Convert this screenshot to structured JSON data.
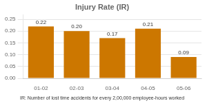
{
  "chart_data": {
    "type": "bar",
    "title": "Injury Rate (IR)",
    "categories": [
      "01-02",
      "02-03",
      "03-04",
      "04-05",
      "05-06"
    ],
    "values": [
      0.22,
      0.2,
      0.17,
      0.21,
      0.09
    ],
    "value_labels": [
      "0.22",
      "0.20",
      "0.17",
      "0.21",
      "0.09"
    ],
    "data_labels": true,
    "color": "#CC7700",
    "ylim": [
      0,
      0.27
    ],
    "yticks": [
      {
        "value": 0,
        "label": "0.00"
      },
      0.05,
      {
        "value": 0.1,
        "label": "0.10"
      },
      0.15,
      {
        "value": 0.2,
        "label": "0.20"
      },
      0.25
    ],
    "grid": true,
    "annotations": [
      "IR: Number of lost time accidents for every 2,00,000 employee-hours worked"
    ]
  }
}
